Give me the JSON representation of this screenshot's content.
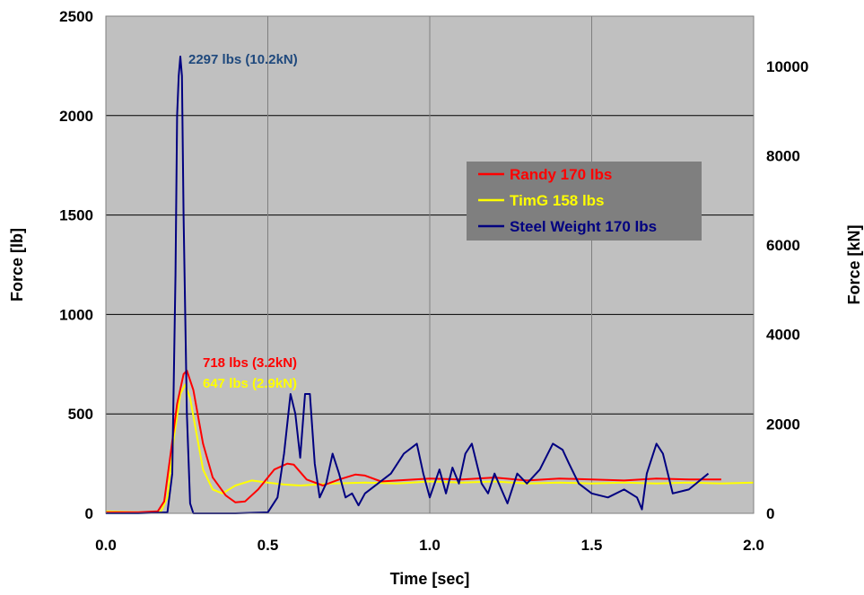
{
  "chart_data": {
    "type": "line",
    "x": {
      "label": "Time [sec]",
      "range": [
        0,
        2.0
      ],
      "ticks": [
        0,
        0.5,
        1.0,
        1.5,
        2.0
      ],
      "tick_labels": [
        "0.0",
        "0.5",
        "1.0",
        "1.5",
        "2.0"
      ]
    },
    "y_left": {
      "label": "Force [lb]",
      "range": [
        0,
        2500
      ],
      "ticks": [
        0,
        500,
        1000,
        1500,
        2000,
        2500
      ],
      "tick_labels": [
        "0",
        "500",
        "1000",
        "1500",
        "2000",
        "2500"
      ]
    },
    "y_right": {
      "label": "Force [kN]",
      "range": [
        0,
        11120
      ],
      "ticks": [
        0,
        2000,
        4000,
        6000,
        8000,
        10000
      ],
      "tick_labels": [
        "0",
        "2000",
        "4000",
        "6000",
        "8000",
        "10000"
      ]
    },
    "grid": true,
    "plot_background": "#c0c0c0",
    "legend_position": "top-right",
    "legend_background": "#7f7f7f",
    "series": [
      {
        "name": "Randy 170 lbs",
        "color": "#ff0000",
        "x": [
          0,
          0.1,
          0.16,
          0.18,
          0.2,
          0.22,
          0.24,
          0.25,
          0.27,
          0.3,
          0.33,
          0.37,
          0.4,
          0.43,
          0.47,
          0.52,
          0.56,
          0.58,
          0.62,
          0.67,
          0.72,
          0.77,
          0.8,
          0.85,
          0.9,
          1.0,
          1.1,
          1.2,
          1.3,
          1.4,
          1.5,
          1.6,
          1.7,
          1.8,
          1.9
        ],
        "y": [
          5,
          5,
          10,
          60,
          300,
          550,
          700,
          718,
          620,
          350,
          180,
          90,
          55,
          60,
          120,
          220,
          250,
          245,
          170,
          140,
          170,
          195,
          190,
          160,
          165,
          175,
          170,
          180,
          165,
          175,
          170,
          165,
          175,
          170,
          170
        ]
      },
      {
        "name": "TimG 158 lbs",
        "color": "#ffff00",
        "x": [
          0,
          0.1,
          0.17,
          0.19,
          0.21,
          0.23,
          0.245,
          0.26,
          0.28,
          0.3,
          0.33,
          0.36,
          0.4,
          0.45,
          0.5,
          0.55,
          0.6,
          0.7,
          0.8,
          0.9,
          1.0,
          1.1,
          1.2,
          1.3,
          1.4,
          1.5,
          1.6,
          1.7,
          1.8,
          1.9,
          2.0
        ],
        "y": [
          10,
          5,
          10,
          80,
          380,
          600,
          647,
          580,
          400,
          220,
          120,
          100,
          140,
          165,
          155,
          145,
          140,
          150,
          155,
          150,
          160,
          155,
          160,
          150,
          155,
          150,
          155,
          150,
          155,
          150,
          155
        ]
      },
      {
        "name": "Steel Weight 170 lbs",
        "color": "#000080",
        "x": [
          0,
          0.1,
          0.19,
          0.205,
          0.215,
          0.22,
          0.225,
          0.23,
          0.235,
          0.24,
          0.25,
          0.26,
          0.27,
          0.3,
          0.4,
          0.5,
          0.53,
          0.55,
          0.57,
          0.585,
          0.6,
          0.615,
          0.63,
          0.645,
          0.66,
          0.68,
          0.7,
          0.72,
          0.74,
          0.76,
          0.78,
          0.8,
          0.84,
          0.88,
          0.92,
          0.96,
          0.98,
          1.0,
          1.03,
          1.05,
          1.07,
          1.09,
          1.11,
          1.13,
          1.16,
          1.18,
          1.2,
          1.24,
          1.27,
          1.3,
          1.34,
          1.38,
          1.41,
          1.43,
          1.46,
          1.5,
          1.55,
          1.6,
          1.64,
          1.655,
          1.67,
          1.7,
          1.72,
          1.75,
          1.8,
          1.86
        ],
        "y": [
          0,
          0,
          5,
          200,
          1200,
          2000,
          2200,
          2297,
          2200,
          1500,
          500,
          50,
          0,
          0,
          0,
          5,
          80,
          300,
          600,
          500,
          280,
          600,
          600,
          250,
          80,
          150,
          300,
          200,
          80,
          100,
          40,
          100,
          150,
          200,
          300,
          350,
          200,
          80,
          220,
          100,
          230,
          150,
          300,
          350,
          150,
          100,
          200,
          50,
          200,
          150,
          220,
          350,
          320,
          250,
          150,
          100,
          80,
          120,
          80,
          20,
          200,
          350,
          300,
          100,
          120,
          200
        ]
      }
    ],
    "annotations": [
      {
        "text": "2297 lbs (10.2kN)",
        "color": "#1f497d"
      },
      {
        "text": "718 lbs (3.2kN)",
        "color": "#ff0000"
      },
      {
        "text": "647 lbs (2.9kN)",
        "color": "#ffff00"
      }
    ]
  }
}
